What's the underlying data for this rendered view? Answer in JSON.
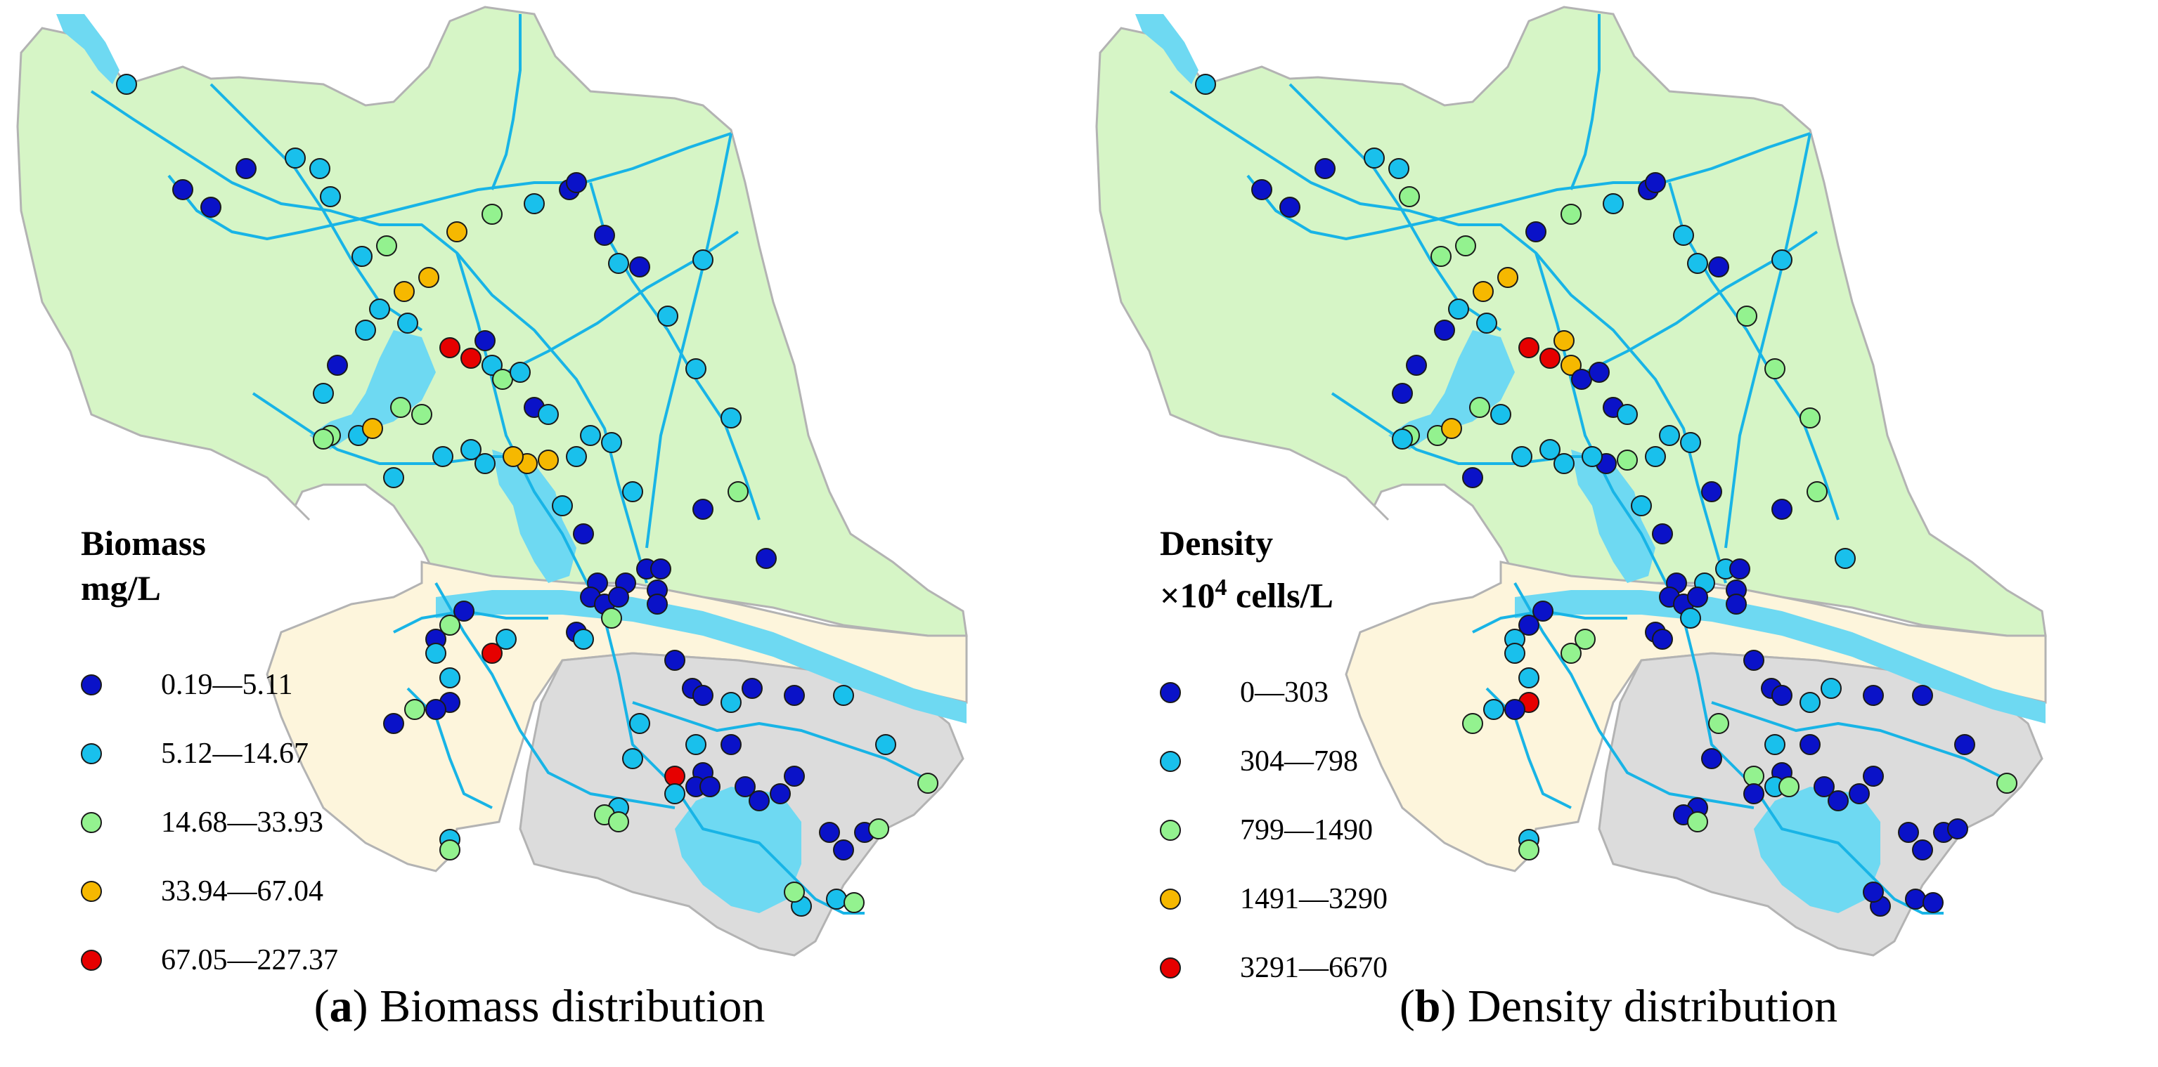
{
  "panels": [
    {
      "id": "a",
      "legend": {
        "title": "Biomass",
        "unit": "mg/L",
        "classes": [
          {
            "label": "0.19—5.11",
            "color": "#0a12c8"
          },
          {
            "label": "5.12—14.67",
            "color": "#19c0ec"
          },
          {
            "label": "14.68—33.93",
            "color": "#93f28f"
          },
          {
            "label": "33.94—67.04",
            "color": "#f6b800"
          },
          {
            "label": "67.05—227.37",
            "color": "#e60000"
          }
        ]
      },
      "caption": {
        "letter": "a",
        "text": "Biomass distribution"
      }
    },
    {
      "id": "b",
      "legend": {
        "title": "Density",
        "unit_prefix": "×10",
        "unit_exp": "4",
        "unit_suffix": " cells/L",
        "classes": [
          {
            "label": "0—303",
            "color": "#0a12c8"
          },
          {
            "label": "304—798",
            "color": "#19c0ec"
          },
          {
            "label": "799—1490",
            "color": "#93f28f"
          },
          {
            "label": "1491—3290",
            "color": "#f6b800"
          },
          {
            "label": "3291—6670",
            "color": "#e60000"
          }
        ]
      },
      "caption": {
        "letter": "b",
        "text": "Density distribution"
      }
    }
  ],
  "colors": {
    "north_region": "#d6f5c6",
    "middle_region": "#fdf5dc",
    "south_region": "#dcdcdc",
    "water": "#6ed9f2",
    "river": "#18b4e6",
    "border": "#b3b3b3"
  }
}
